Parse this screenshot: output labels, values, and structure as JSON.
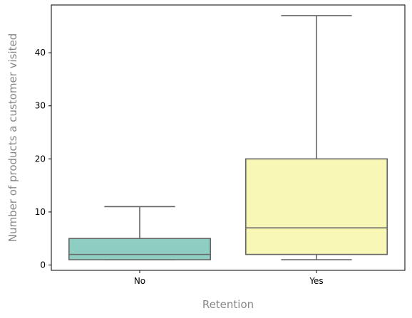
{
  "chart_data": {
    "type": "box",
    "title": "",
    "xlabel": "Retention",
    "ylabel": "Number of products a customer visited",
    "label_color": "#888888",
    "box_edge_color": "#666666",
    "categories": [
      "No",
      "Yes"
    ],
    "ylim": [
      -1,
      49
    ],
    "yticks": [
      0,
      10,
      20,
      30,
      40
    ],
    "ytick_labels": [
      "0",
      "10",
      "20",
      "30",
      "40"
    ],
    "grid": false,
    "legend": "none",
    "boxes": [
      {
        "category": "No",
        "whisker_low": 1,
        "q1": 1,
        "median": 2,
        "q3": 5,
        "whisker_high": 11,
        "color": "#8ecdc2"
      },
      {
        "category": "Yes",
        "whisker_low": 1,
        "q1": 2,
        "median": 7,
        "q3": 20,
        "whisker_high": 47,
        "color": "#f8f7b6"
      }
    ]
  }
}
